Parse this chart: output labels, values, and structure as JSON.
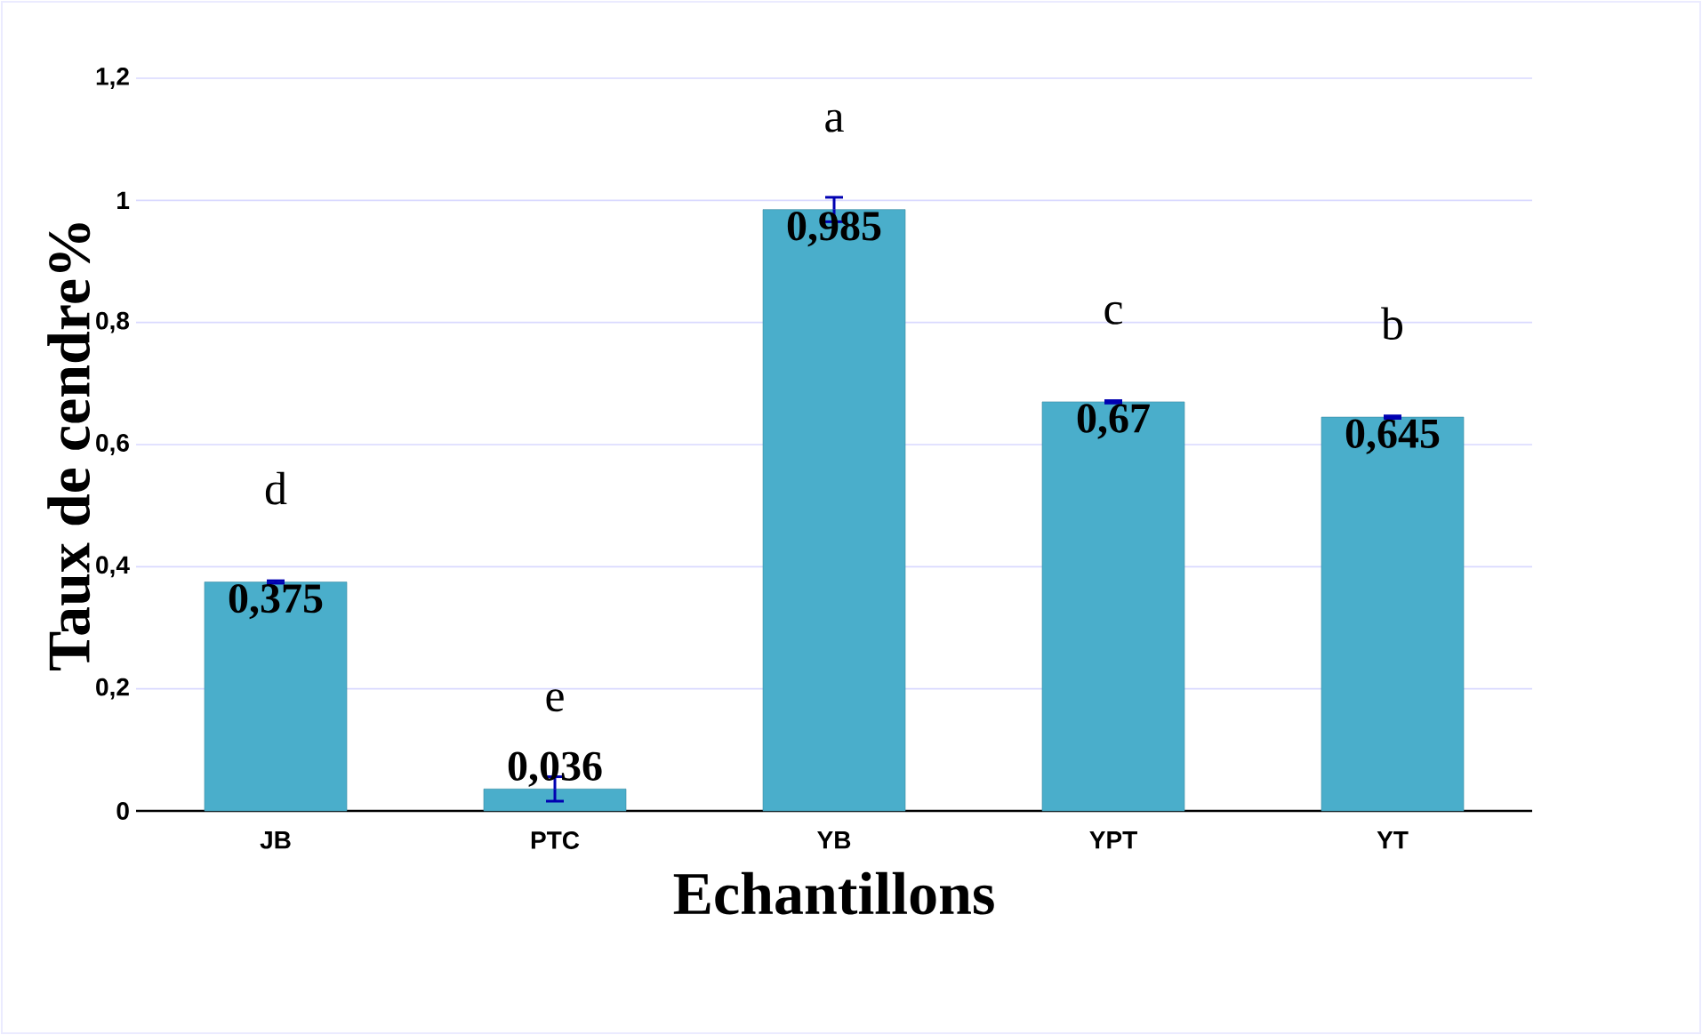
{
  "chart_data": {
    "type": "bar",
    "xlabel": "Echantillons",
    "ylabel": "Taux de cendre%",
    "categories": [
      "JB",
      "PTC",
      "YB",
      "YPT",
      "YT"
    ],
    "values": [
      0.375,
      0.036,
      0.985,
      0.67,
      0.645
    ],
    "errors": [
      0.002,
      0.02,
      0.02,
      0.002,
      0.002
    ],
    "value_labels": [
      "0,375",
      "0,036",
      "0,985",
      "0,67",
      "0,645"
    ],
    "color": "#4aaecb",
    "ylim": [
      0,
      1.2
    ],
    "yticks": [
      0,
      {
        "value": 0.2,
        "label": "0,2"
      },
      {
        "value": 0.4,
        "label": "0,4"
      },
      {
        "value": 0.6,
        "label": "0,6"
      },
      {
        "value": 0.8,
        "label": "0,8"
      },
      1,
      {
        "value": 1.2,
        "label": "1,2"
      }
    ],
    "grid": "y",
    "annotations": [
      "d",
      "e",
      "a",
      "c",
      "b"
    ]
  }
}
